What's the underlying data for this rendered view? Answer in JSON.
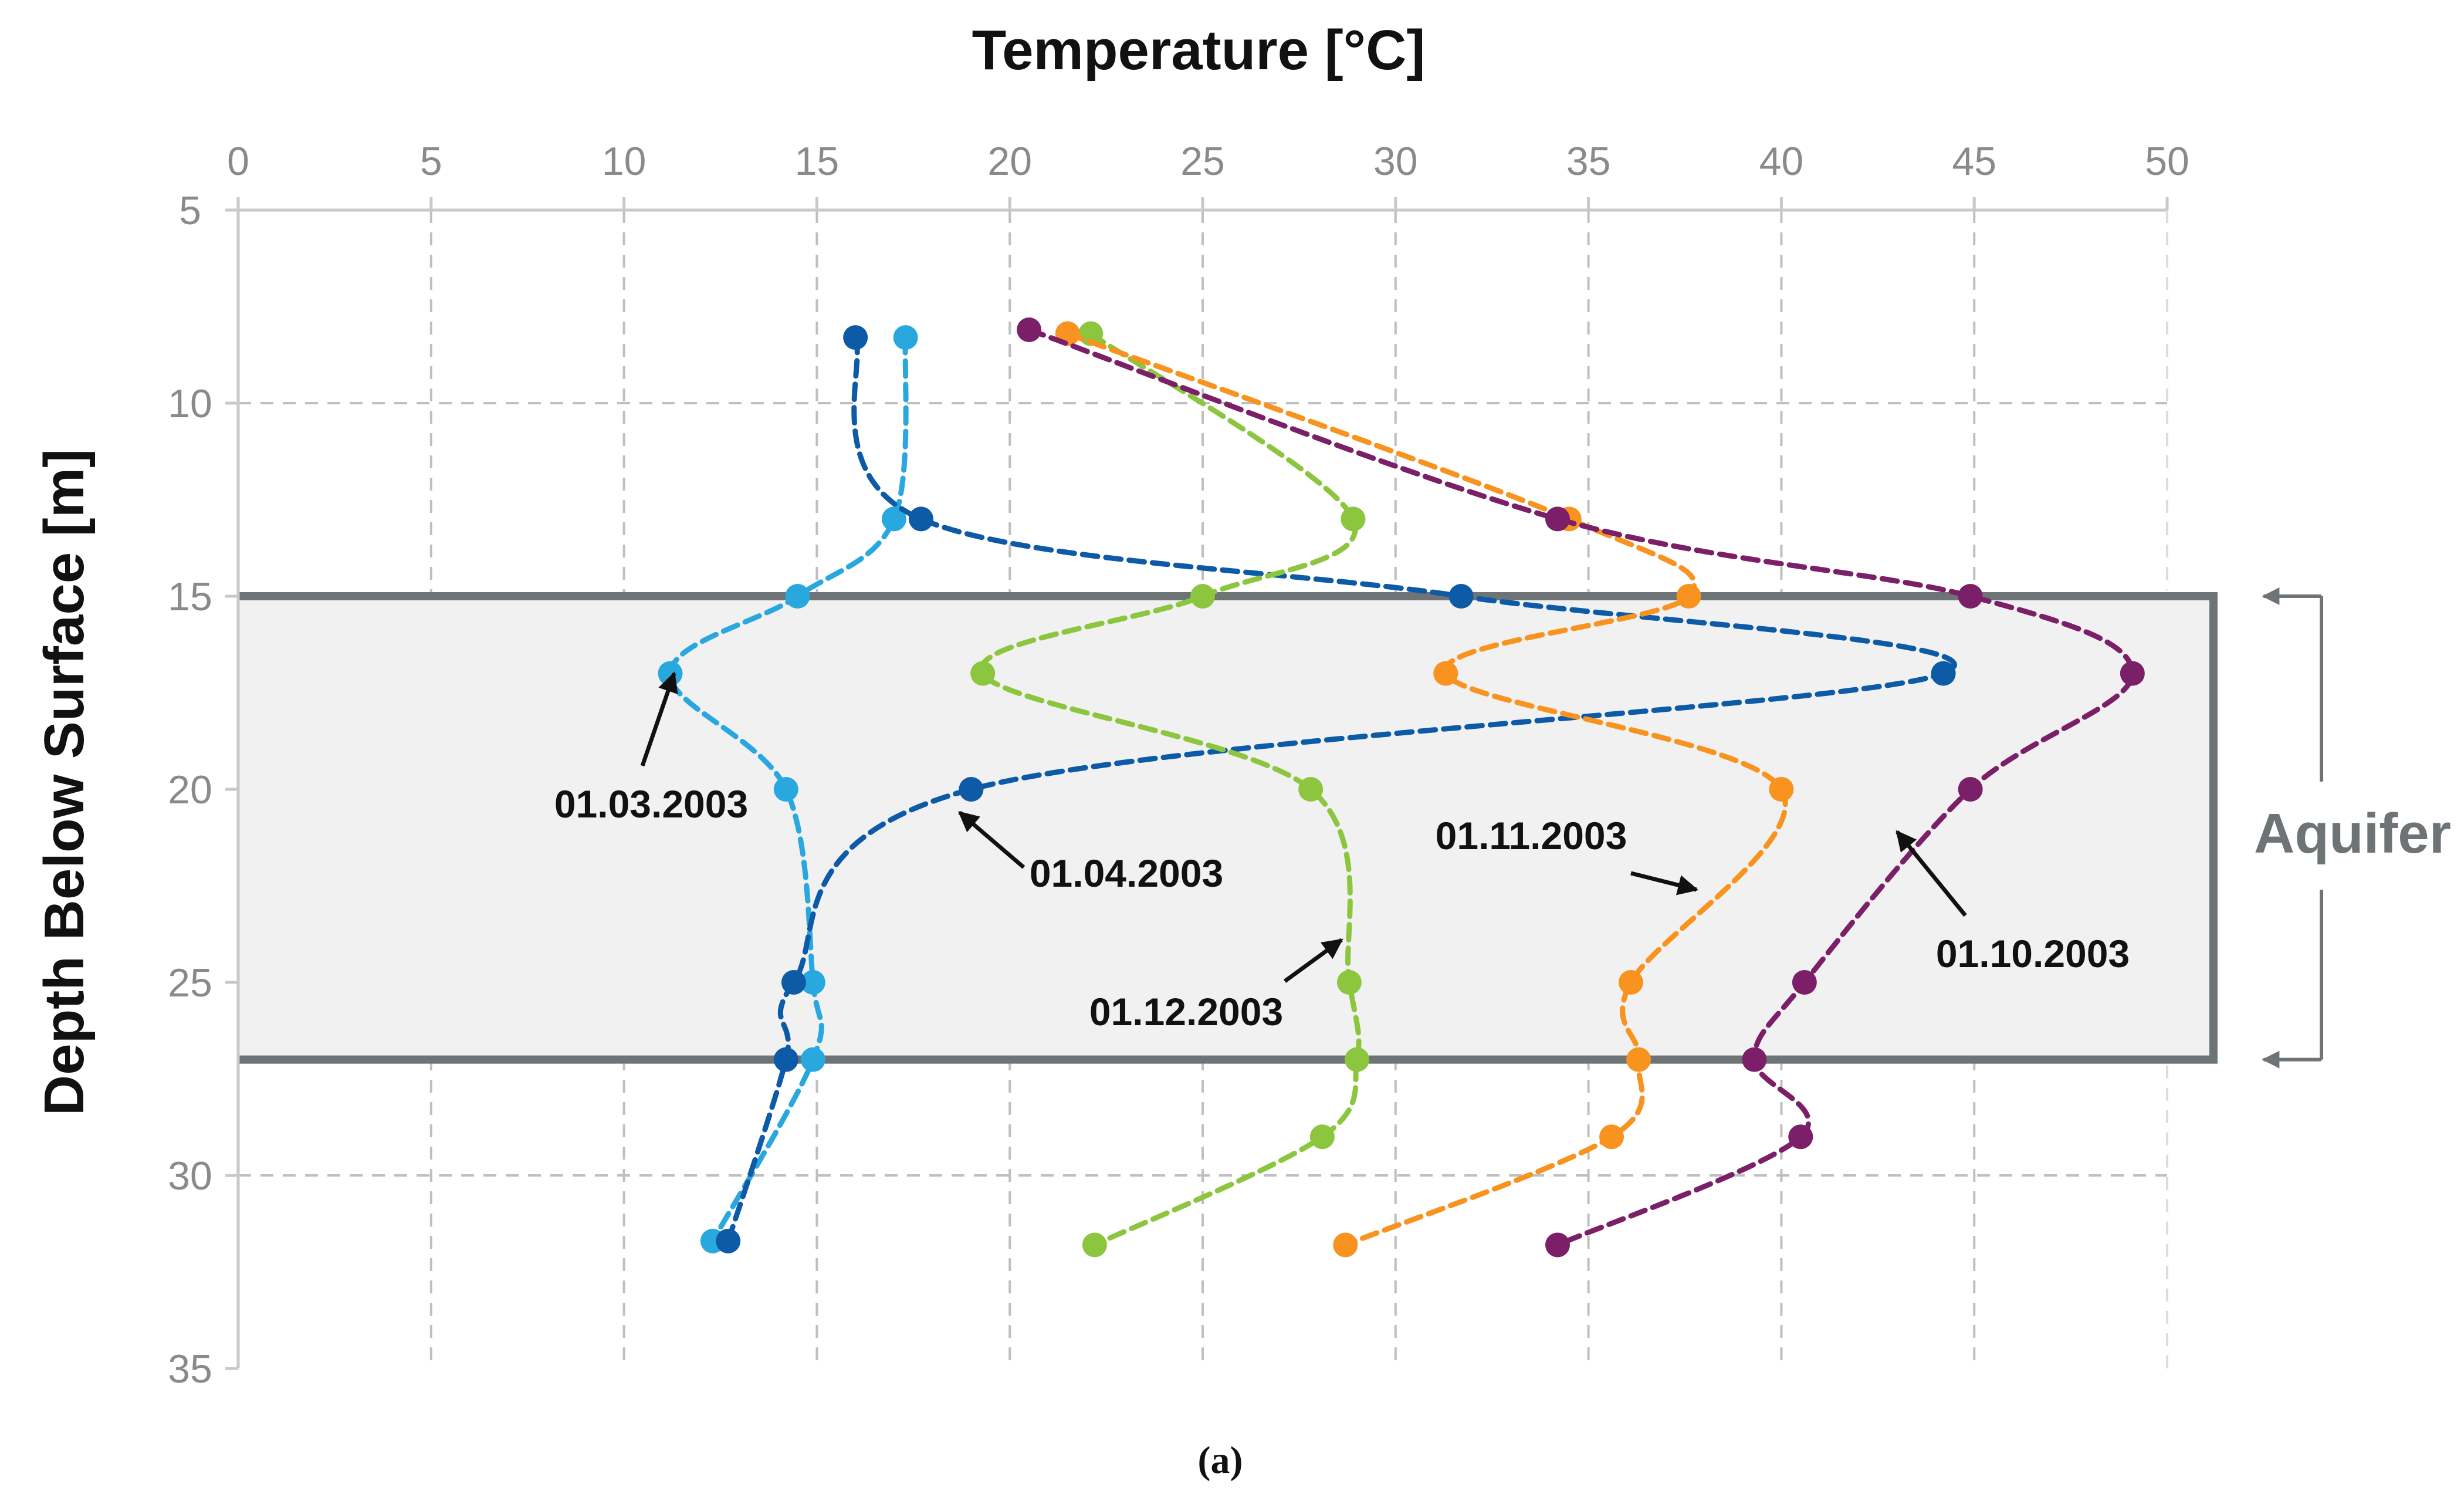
{
  "chart_data": {
    "type": "line",
    "xlabel": "Temperature [°C]",
    "ylabel": "Depth Below Surface [m]",
    "xlim": [
      0,
      50
    ],
    "ylim": [
      5,
      35
    ],
    "x_ticks": [
      0,
      5,
      10,
      15,
      20,
      25,
      30,
      35,
      40,
      45,
      50
    ],
    "y_ticks": [
      5,
      10,
      15,
      20,
      25,
      30,
      35
    ],
    "y_inverted": true,
    "grid": true,
    "series": [
      {
        "name": "01.03.2003",
        "color": "#29a8e0",
        "points": [
          [
            17.3,
            8.3
          ],
          [
            17.0,
            13.0
          ],
          [
            14.5,
            15.0
          ],
          [
            11.2,
            17.0
          ],
          [
            14.2,
            20.0
          ],
          [
            14.9,
            25.0
          ],
          [
            14.9,
            27.0
          ],
          [
            12.3,
            31.7
          ]
        ]
      },
      {
        "name": "01.04.2003",
        "color": "#0d5aa7",
        "points": [
          [
            16.0,
            8.3
          ],
          [
            17.7,
            13.0
          ],
          [
            31.7,
            15.0
          ],
          [
            44.2,
            17.0
          ],
          [
            19.0,
            20.0
          ],
          [
            14.4,
            25.0
          ],
          [
            14.2,
            27.0
          ],
          [
            12.7,
            31.7
          ]
        ]
      },
      {
        "name": "01.12.2003",
        "color": "#8cc63f",
        "points": [
          [
            22.1,
            8.2
          ],
          [
            28.9,
            13.0
          ],
          [
            25.0,
            15.0
          ],
          [
            19.3,
            17.0
          ],
          [
            27.8,
            20.0
          ],
          [
            28.8,
            25.0
          ],
          [
            29.0,
            27.0
          ],
          [
            28.1,
            29.0
          ],
          [
            22.2,
            31.8
          ]
        ]
      },
      {
        "name": "01.11.2003",
        "color": "#f7931e",
        "points": [
          [
            21.5,
            8.2
          ],
          [
            34.5,
            13.0
          ],
          [
            37.6,
            15.0
          ],
          [
            31.3,
            17.0
          ],
          [
            40.0,
            20.0
          ],
          [
            36.1,
            25.0
          ],
          [
            36.3,
            27.0
          ],
          [
            35.6,
            29.0
          ],
          [
            28.7,
            31.8
          ]
        ]
      },
      {
        "name": "01.10.2003",
        "color": "#7b2068",
        "points": [
          [
            20.5,
            8.1
          ],
          [
            34.2,
            13.0
          ],
          [
            44.9,
            15.0
          ],
          [
            49.1,
            17.0
          ],
          [
            44.9,
            20.0
          ],
          [
            40.6,
            25.0
          ],
          [
            39.3,
            27.0
          ],
          [
            40.5,
            29.0
          ],
          [
            34.2,
            31.8
          ]
        ]
      }
    ],
    "aquifer": {
      "label": "Aquifer",
      "top_depth": 15,
      "bottom_depth": 27
    },
    "annotations": [
      {
        "text": "01.03.2003",
        "target": [
          11.3,
          17.0
        ]
      },
      {
        "text": "01.04.2003",
        "target": [
          18.7,
          20.6
        ]
      },
      {
        "text": "01.12.2003",
        "target": [
          28.6,
          23.9
        ]
      },
      {
        "text": "01.11.2003",
        "target": [
          37.8,
          22.6
        ]
      },
      {
        "text": "01.10.2003",
        "target": [
          43.0,
          21.1
        ]
      }
    ],
    "caption": "(a)"
  }
}
